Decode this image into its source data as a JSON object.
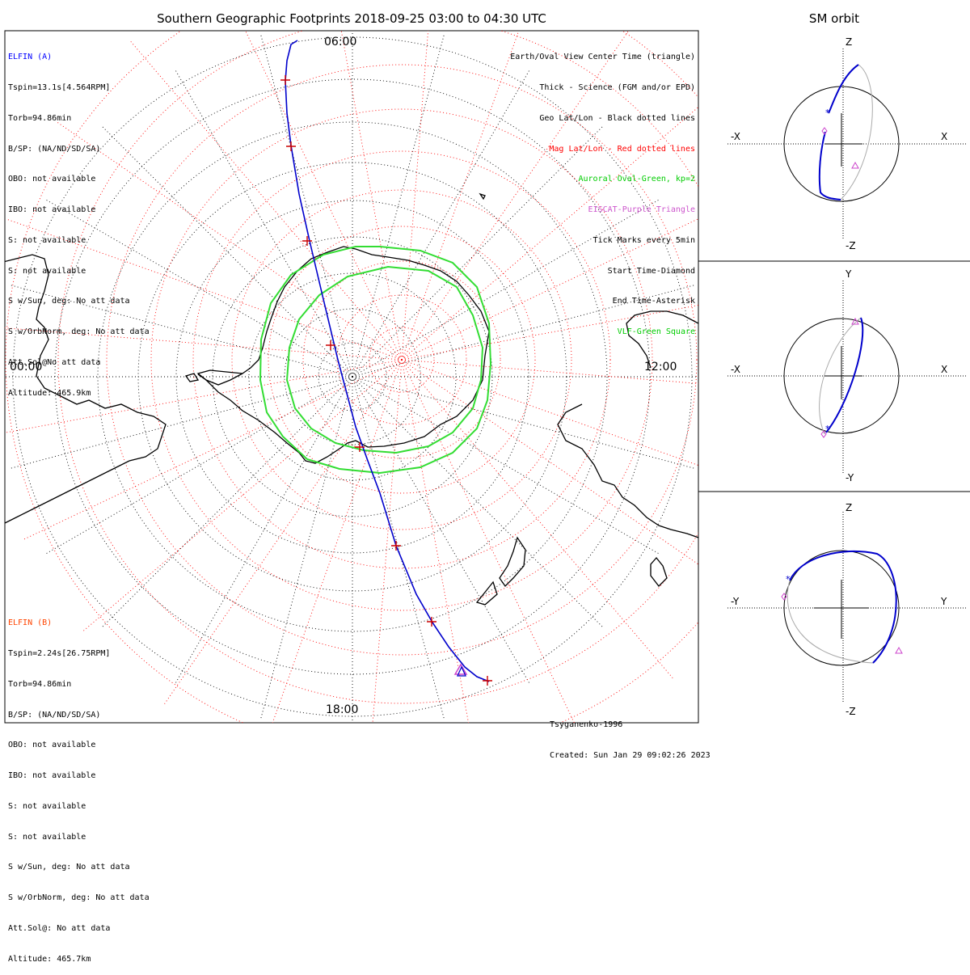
{
  "main_title": "Southern Geographic Footprints 2018-09-25 03:00 to 04:30 UTC",
  "side_title": "SM orbit",
  "elfin_a": {
    "name": "ELFIN (A)",
    "lines": [
      "Tspin=13.1s[4.564RPM]",
      "Torb=94.86min",
      "B/SP: (NA/ND/SD/SA)",
      "OBO: not available",
      "IBO: not available",
      "S: not available",
      "S: not available",
      "S w/Sun, deg: No att data",
      "S w/OrbNorm, deg: No att data",
      "Att.Sol@No att data",
      "Altitude: 465.9km"
    ]
  },
  "elfin_b": {
    "name": "ELFIN (B)",
    "lines": [
      "Tspin=2.24s[26.75RPM]",
      "Torb=94.86min",
      "B/SP: (NA/ND/SD/SA)",
      "OBO: not available",
      "IBO: not available",
      "S: not available",
      "S: not available",
      "S w/Sun, deg: No att data",
      "S w/OrbNorm, deg: No att data",
      "Att.Sol@: No att data",
      "Altitude: 465.7km"
    ]
  },
  "legend": [
    {
      "text": "Earth/Oval View Center Time (triangle)",
      "color": "#000000"
    },
    {
      "text": "Thick - Science (FGM and/or EPD)",
      "color": "#000000"
    },
    {
      "text": "Geo Lat/Lon - Black dotted lines",
      "color": "#000000"
    },
    {
      "text": "Mag Lat/Lon - Red dotted lines",
      "color": "#ff0000"
    },
    {
      "text": "Auroral Oval-Green, kp=2",
      "color": "#00cc00"
    },
    {
      "text": "EISCAT-Purple Triangle",
      "color": "#cc55cc"
    },
    {
      "text": "Tick Marks every 5min",
      "color": "#000000"
    },
    {
      "text": "Start Time-Diamond",
      "color": "#000000"
    },
    {
      "text": "End Time-Asterisk",
      "color": "#000000"
    },
    {
      "text": "VLF-Green Square",
      "color": "#00cc00"
    }
  ],
  "hour_labels": {
    "top": "06:00",
    "left": "00:00",
    "right": "12:00",
    "bottom": "18:00"
  },
  "footer": {
    "model": "Tsyganenko-1996",
    "created": "Created: Sun Jan 29 09:02:26 2023"
  },
  "panels": [
    {
      "top_label": "Z",
      "bottom_label": "-Z",
      "left_label": "-X",
      "right_label": "X"
    },
    {
      "top_label": "Y",
      "bottom_label": "-Y",
      "left_label": "-X",
      "right_label": "X"
    },
    {
      "top_label": "Z",
      "bottom_label": "-Z",
      "left_label": "-Y",
      "right_label": "Y"
    }
  ],
  "colors": {
    "elfin_a": "#0000ff",
    "elfin_b": "#ff4400",
    "track": "#0000cc",
    "oval": "#33dd33",
    "mag_grid": "#ff0000",
    "eiscat": "#cc44cc"
  }
}
